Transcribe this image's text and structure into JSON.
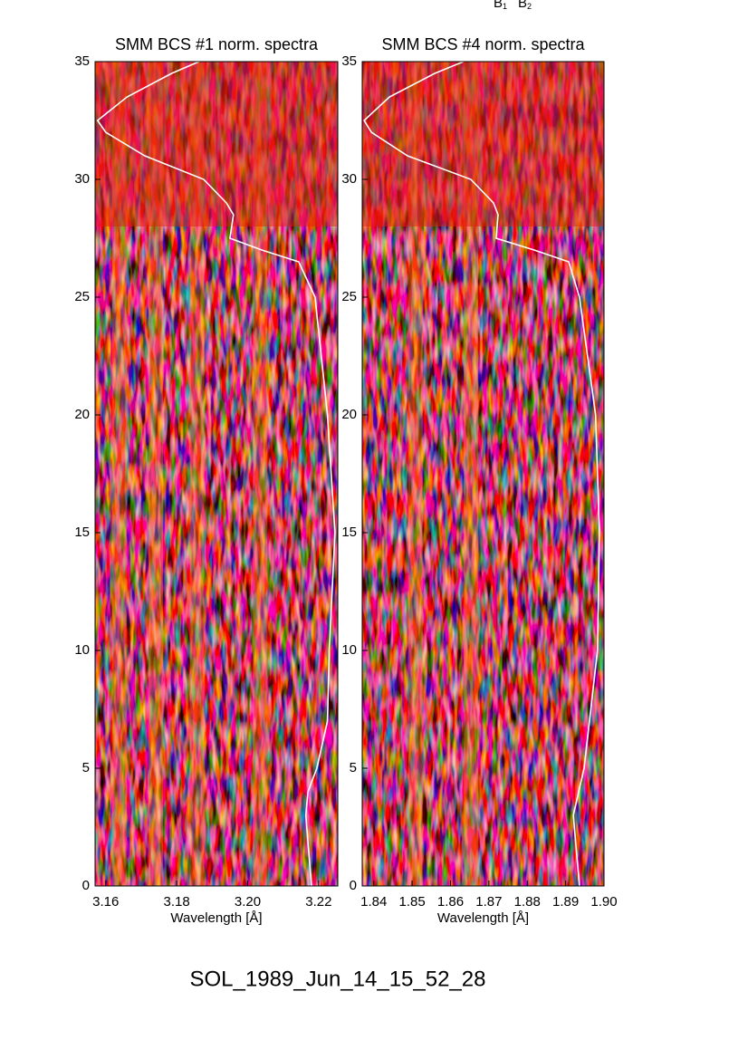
{
  "chart_data": [
    {
      "type": "heatmap-line",
      "title": "SMM BCS #1 norm. spectra",
      "xlabel": "Wavelength [Å]",
      "xlim": [
        3.157,
        3.2254
      ],
      "xticks": [
        3.16,
        3.18,
        {
          "value": 3.2,
          "label": "3.20"
        },
        3.22
      ],
      "ylim": [
        0,
        35
      ],
      "yticks": [
        0,
        5,
        10,
        15,
        20,
        25,
        30,
        35
      ],
      "line": {
        "color": "#ffffff",
        "y": [
          0,
          3,
          4,
          5,
          7,
          10,
          15,
          20,
          25,
          26.5,
          27,
          27.5,
          28.5,
          29,
          30,
          31,
          32,
          32.5,
          33.5,
          34.5,
          35
        ],
        "x": [
          3.218,
          3.2164,
          3.217,
          3.2195,
          3.2225,
          3.223,
          3.2246,
          3.2225,
          3.219,
          3.2144,
          3.204,
          3.195,
          3.196,
          3.194,
          3.1876,
          3.171,
          3.16,
          3.1577,
          3.166,
          3.1786,
          3.1863
        ]
      }
    },
    {
      "type": "heatmap-line",
      "title": "SMM BCS #4 norm. spectra",
      "xlabel": "Wavelength [Å]",
      "xlim": [
        1.837,
        1.9
      ],
      "xticks": [
        1.84,
        1.85,
        1.86,
        1.87,
        1.88,
        1.89,
        {
          "value": 1.9,
          "label": "1.90"
        }
      ],
      "ylim": [
        0,
        35
      ],
      "yticks": [
        0,
        5,
        10,
        15,
        20,
        25,
        30,
        35
      ],
      "line": {
        "color": "#ffffff",
        "y": [
          0,
          3,
          5,
          10,
          15,
          20,
          25,
          26.5,
          27,
          27.5,
          28.5,
          29,
          30,
          31,
          32,
          32.5,
          33.5,
          34.5,
          35
        ],
        "x": [
          1.8936,
          1.892,
          1.8948,
          1.8983,
          1.8988,
          1.8978,
          1.8936,
          1.8908,
          1.8818,
          1.8719,
          1.8724,
          1.8712,
          1.8653,
          1.8488,
          1.8394,
          1.8375,
          1.8441,
          1.8559,
          1.8634
        ]
      }
    }
  ],
  "annotations": [
    {
      "text": "B",
      "sub": "1"
    },
    {
      "text": "B",
      "sub": "2"
    }
  ],
  "footer": "SOL_1989_Jun_14_15_52_28"
}
